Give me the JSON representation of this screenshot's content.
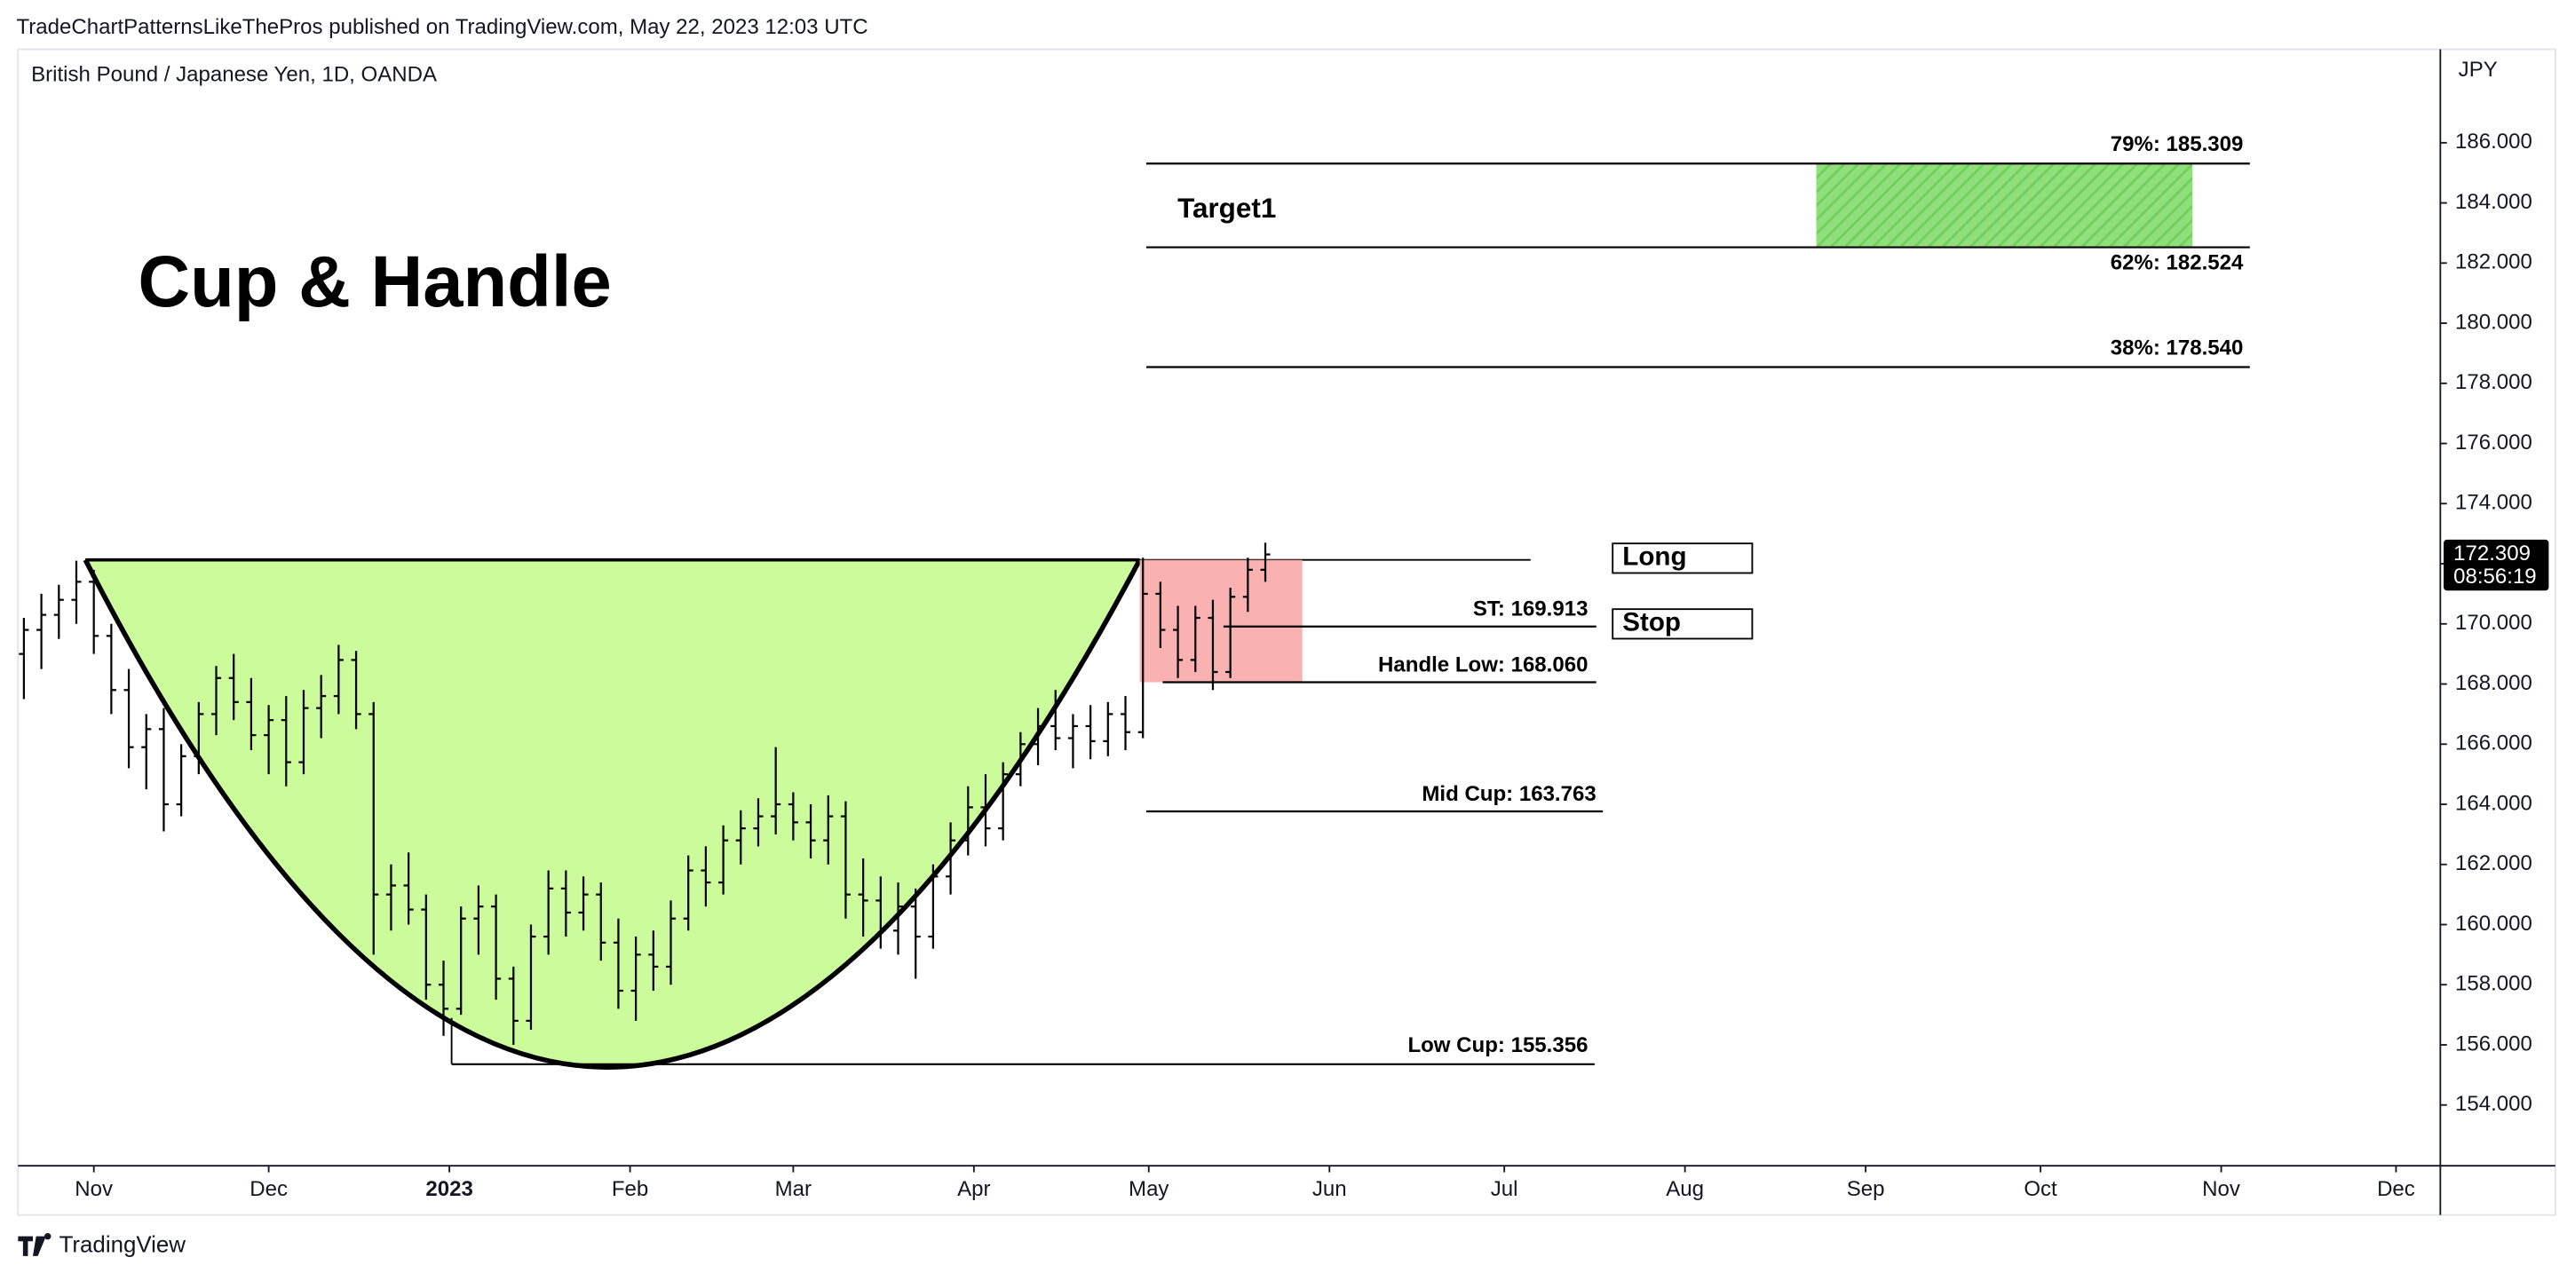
{
  "header": {
    "publisher": "TradeChartPatternsLikeThePros published on TradingView.com, May 22, 2023 12:03 UTC",
    "symbol": "British Pound / Japanese Yen, 1D, OANDA",
    "currency": "JPY"
  },
  "chart_data": {
    "type": "ohlc",
    "title": "Cup & Handle",
    "color": "#000000",
    "x": [
      19,
      22,
      25,
      28,
      31,
      34,
      37,
      40,
      43,
      46,
      49,
      52,
      55,
      58,
      61,
      64,
      67,
      70,
      73,
      76,
      79,
      82,
      85,
      88,
      91,
      94,
      97,
      100,
      103,
      106,
      109,
      112,
      115,
      118,
      121,
      124,
      127,
      130,
      133,
      136,
      139,
      142,
      145,
      148,
      151,
      154,
      157,
      160,
      163,
      166,
      169,
      172,
      175,
      178,
      181,
      184,
      187,
      190,
      193,
      196,
      199,
      202,
      205,
      208,
      211,
      214,
      217,
      220,
      223,
      226,
      229,
      232
    ],
    "open": [
      169.0,
      169.8,
      170.3,
      170.8,
      171.4,
      169.6,
      167.8,
      165.9,
      166.5,
      164.0,
      165.6,
      167.0,
      168.2,
      167.4,
      166.3,
      166.8,
      165.4,
      167.2,
      167.6,
      168.8,
      167.0,
      161.0,
      161.3,
      160.5,
      158.0,
      157.2,
      160.2,
      160.6,
      158.2,
      156.8,
      159.6,
      161.2,
      160.4,
      161.0,
      159.4,
      157.8,
      159.0,
      158.6,
      160.2,
      161.8,
      161.4,
      162.8,
      163.2,
      163.6,
      164.0,
      163.4,
      162.8,
      163.6,
      161.0,
      160.8,
      159.8,
      160.6,
      159.6,
      161.6,
      162.8,
      163.9,
      163.2,
      165.0,
      166.0,
      166.6,
      166.2,
      166.6,
      166.1,
      167.0,
      166.4,
      171.0,
      169.8,
      168.8,
      170.2,
      168.4,
      170.9,
      171.8
    ],
    "high": [
      170.2,
      171.0,
      171.3,
      172.1,
      171.8,
      170.0,
      168.5,
      167.0,
      167.2,
      166.0,
      167.4,
      168.6,
      169.0,
      168.2,
      167.3,
      167.6,
      167.8,
      168.3,
      169.3,
      169.1,
      167.4,
      162.0,
      162.4,
      161.0,
      158.8,
      160.6,
      161.3,
      161.0,
      158.6,
      160.0,
      161.8,
      161.8,
      161.6,
      161.4,
      160.2,
      159.6,
      159.8,
      160.8,
      162.3,
      162.6,
      163.3,
      163.8,
      164.2,
      165.9,
      164.4,
      164.0,
      164.3,
      164.1,
      162.2,
      161.6,
      161.4,
      161.2,
      162.0,
      163.4,
      164.6,
      165.0,
      165.4,
      166.4,
      167.2,
      167.8,
      167.0,
      167.3,
      167.4,
      167.6,
      172.2,
      171.4,
      170.6,
      170.6,
      170.8,
      171.2,
      172.2,
      172.7
    ],
    "low": [
      167.5,
      168.5,
      169.5,
      170.0,
      169.0,
      167.0,
      165.2,
      164.5,
      163.1,
      163.6,
      165.0,
      166.3,
      166.8,
      165.8,
      165.0,
      164.6,
      165.0,
      166.2,
      167.0,
      166.5,
      159.0,
      159.8,
      160.0,
      157.5,
      156.3,
      157.0,
      159.0,
      157.5,
      156.0,
      156.5,
      159.0,
      159.6,
      159.8,
      158.8,
      157.2,
      156.8,
      157.8,
      158.0,
      159.8,
      160.6,
      161.0,
      162.0,
      162.6,
      163.0,
      162.8,
      162.2,
      162.0,
      160.2,
      159.6,
      159.2,
      159.0,
      158.2,
      159.2,
      161.0,
      162.3,
      162.6,
      162.8,
      164.6,
      165.3,
      165.8,
      165.2,
      165.5,
      165.6,
      165.8,
      166.2,
      169.2,
      168.2,
      168.4,
      167.8,
      168.2,
      170.4,
      171.4
    ],
    "close": [
      169.8,
      170.3,
      170.8,
      171.4,
      169.6,
      167.8,
      165.9,
      166.5,
      164.0,
      165.6,
      167.0,
      168.2,
      167.4,
      166.3,
      166.8,
      165.4,
      167.2,
      167.6,
      168.8,
      167.0,
      161.0,
      161.3,
      160.5,
      158.0,
      157.2,
      160.2,
      160.6,
      158.2,
      156.8,
      159.6,
      161.2,
      160.4,
      161.0,
      159.4,
      157.8,
      159.0,
      158.6,
      160.2,
      161.8,
      161.4,
      162.8,
      163.2,
      163.6,
      164.0,
      163.4,
      162.8,
      163.6,
      161.0,
      160.8,
      159.8,
      160.6,
      159.6,
      161.6,
      162.8,
      163.9,
      163.2,
      165.0,
      166.0,
      166.6,
      166.2,
      166.6,
      166.1,
      167.0,
      166.4,
      171.0,
      169.8,
      168.8,
      170.2,
      168.4,
      170.9,
      171.8,
      172.309
    ],
    "xlim": [
      18,
      433.6
    ],
    "xticks": [
      {
        "value": 31,
        "label": "Nov"
      },
      {
        "value": 61,
        "label": "Dec"
      },
      {
        "value": 92,
        "label": "2023"
      },
      {
        "value": 123,
        "label": "Feb"
      },
      {
        "value": 151,
        "label": "Mar"
      },
      {
        "value": 182,
        "label": "Apr"
      },
      {
        "value": 212,
        "label": "May"
      },
      {
        "value": 243,
        "label": "Jun"
      },
      {
        "value": 273,
        "label": "Jul"
      },
      {
        "value": 304,
        "label": "Aug"
      },
      {
        "value": 335,
        "label": "Sep"
      },
      {
        "value": 365,
        "label": "Oct"
      },
      {
        "value": 396,
        "label": "Nov"
      },
      {
        "value": 426,
        "label": "Dec"
      }
    ],
    "ylim": [
      151.98,
      189.11
    ],
    "yticks": [
      {
        "value": 154,
        "label": "154.000"
      },
      {
        "value": 156,
        "label": "156.000"
      },
      {
        "value": 158,
        "label": "158.000"
      },
      {
        "value": 160,
        "label": "160.000"
      },
      {
        "value": 162,
        "label": "162.000"
      },
      {
        "value": 164,
        "label": "164.000"
      },
      {
        "value": 166,
        "label": "166.000"
      },
      {
        "value": 168,
        "label": "168.000"
      },
      {
        "value": 170,
        "label": "170.000"
      },
      {
        "value": 172,
        "label": "172.000"
      },
      {
        "value": 174,
        "label": "174.000"
      },
      {
        "value": 176,
        "label": "176.000"
      },
      {
        "value": 178,
        "label": "178.000"
      },
      {
        "value": 180,
        "label": "180.000"
      },
      {
        "value": 182,
        "label": "182.000"
      },
      {
        "value": 184,
        "label": "184.000"
      },
      {
        "value": 186,
        "label": "186.000"
      }
    ],
    "annotations": [
      {
        "text": "79%: 185.309",
        "value": 185.309
      },
      {
        "text": "62%: 182.524",
        "value": 182.524
      },
      {
        "text": "38%: 178.540",
        "value": 178.54
      },
      {
        "text": "ST: 169.913",
        "value": 169.913
      },
      {
        "text": "Handle Low: 168.060",
        "value": 168.06
      },
      {
        "text": "Mid Cup: 163.763",
        "value": 163.763
      },
      {
        "text": "Low Cup: 155.356",
        "value": 155.356
      }
    ],
    "target_label": "Target1",
    "buttons": [
      "Long",
      "Stop"
    ],
    "last_price": 172.309,
    "countdown": "08:56:19"
  },
  "footer": "TradingView"
}
